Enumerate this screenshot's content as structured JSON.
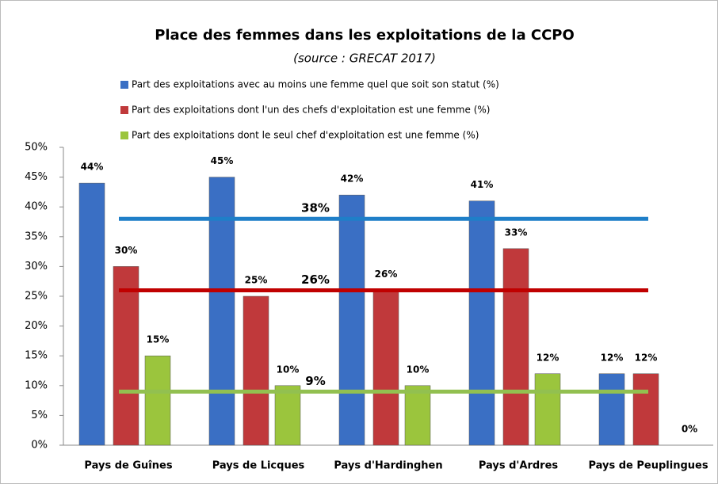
{
  "chart_data": {
    "type": "bar",
    "title": "Place des femmes dans les exploitations de la CCPO",
    "subtitle": "(source : GRECAT 2017)",
    "categories": [
      "Pays de Guînes",
      "Pays de Licques",
      "Pays d'Hardinghen",
      "Pays d'Ardres",
      "Pays de Peuplingues"
    ],
    "series": [
      {
        "name": "Part des exploitations avec au moins une femme quel que soit son statut (%)",
        "color": "#3a6fc4",
        "values": [
          44,
          45,
          42,
          41,
          12
        ],
        "value_labels": [
          "44%",
          "45%",
          "42%",
          "41%",
          "12%"
        ]
      },
      {
        "name": "Part des exploitations dont l'un des chefs d'exploitation est une femme (%)",
        "color": "#c0393b",
        "values": [
          30,
          25,
          26,
          33,
          12
        ],
        "value_labels": [
          "30%",
          "25%",
          "26%",
          "33%",
          "12%"
        ]
      },
      {
        "name": "Part des exploitations dont le seul chef d'exploitation est une femme (%)",
        "color": "#9bc53d",
        "values": [
          15,
          10,
          10,
          12,
          0
        ],
        "value_labels": [
          "15%",
          "10%",
          "10%",
          "12%",
          "0%"
        ]
      }
    ],
    "reference_lines": [
      {
        "value": 38,
        "label": "38%",
        "color": "#1f7fc8"
      },
      {
        "value": 26,
        "label": "26%",
        "color": "#c00000"
      },
      {
        "value": 9,
        "label": "9%",
        "color": "#92c050"
      }
    ],
    "ylim": [
      0,
      50
    ],
    "yticks": [
      {
        "value": 0,
        "label": "0%"
      },
      {
        "value": 5,
        "label": "5%"
      },
      {
        "value": 10,
        "label": "10%"
      },
      {
        "value": 15,
        "label": "15%"
      },
      {
        "value": 20,
        "label": "20%"
      },
      {
        "value": 25,
        "label": "25%"
      },
      {
        "value": 30,
        "label": "30%"
      },
      {
        "value": 35,
        "label": "35%"
      },
      {
        "value": 40,
        "label": "40%"
      },
      {
        "value": 45,
        "label": "45%"
      },
      {
        "value": 50,
        "label": "50%"
      }
    ]
  }
}
